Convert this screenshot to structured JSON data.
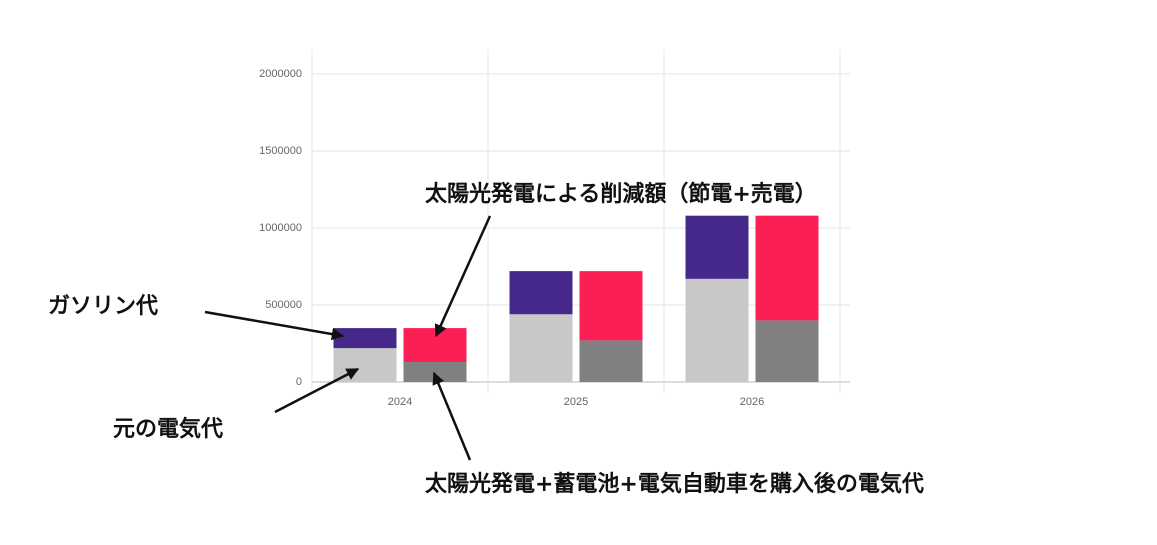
{
  "chart_data": {
    "type": "stacked_bar",
    "categories": [
      "2024",
      "2025",
      "2026"
    ],
    "series": [
      {
        "name": "元の電気代",
        "color": "#c8c8c8",
        "stack": "a",
        "values": [
          220000,
          440000,
          670000
        ]
      },
      {
        "name": "ガソリン代",
        "color": "#46288a",
        "stack": "a",
        "values": [
          130000,
          280000,
          410000
        ]
      },
      {
        "name": "太陽光発電+蓄電池+電気自動車を購入後の電気代",
        "color": "#808080",
        "stack": "b",
        "values": [
          130000,
          270000,
          400000
        ]
      },
      {
        "name": "太陽光発電による削減額（節電+売電）",
        "color": "#fc1f56",
        "stack": "b",
        "values": [
          220000,
          450000,
          680000
        ]
      }
    ],
    "ylim": [
      0,
      2000000
    ],
    "yticks": [
      0,
      500000,
      1000000,
      1500000,
      2000000
    ],
    "grid": true
  }
}
